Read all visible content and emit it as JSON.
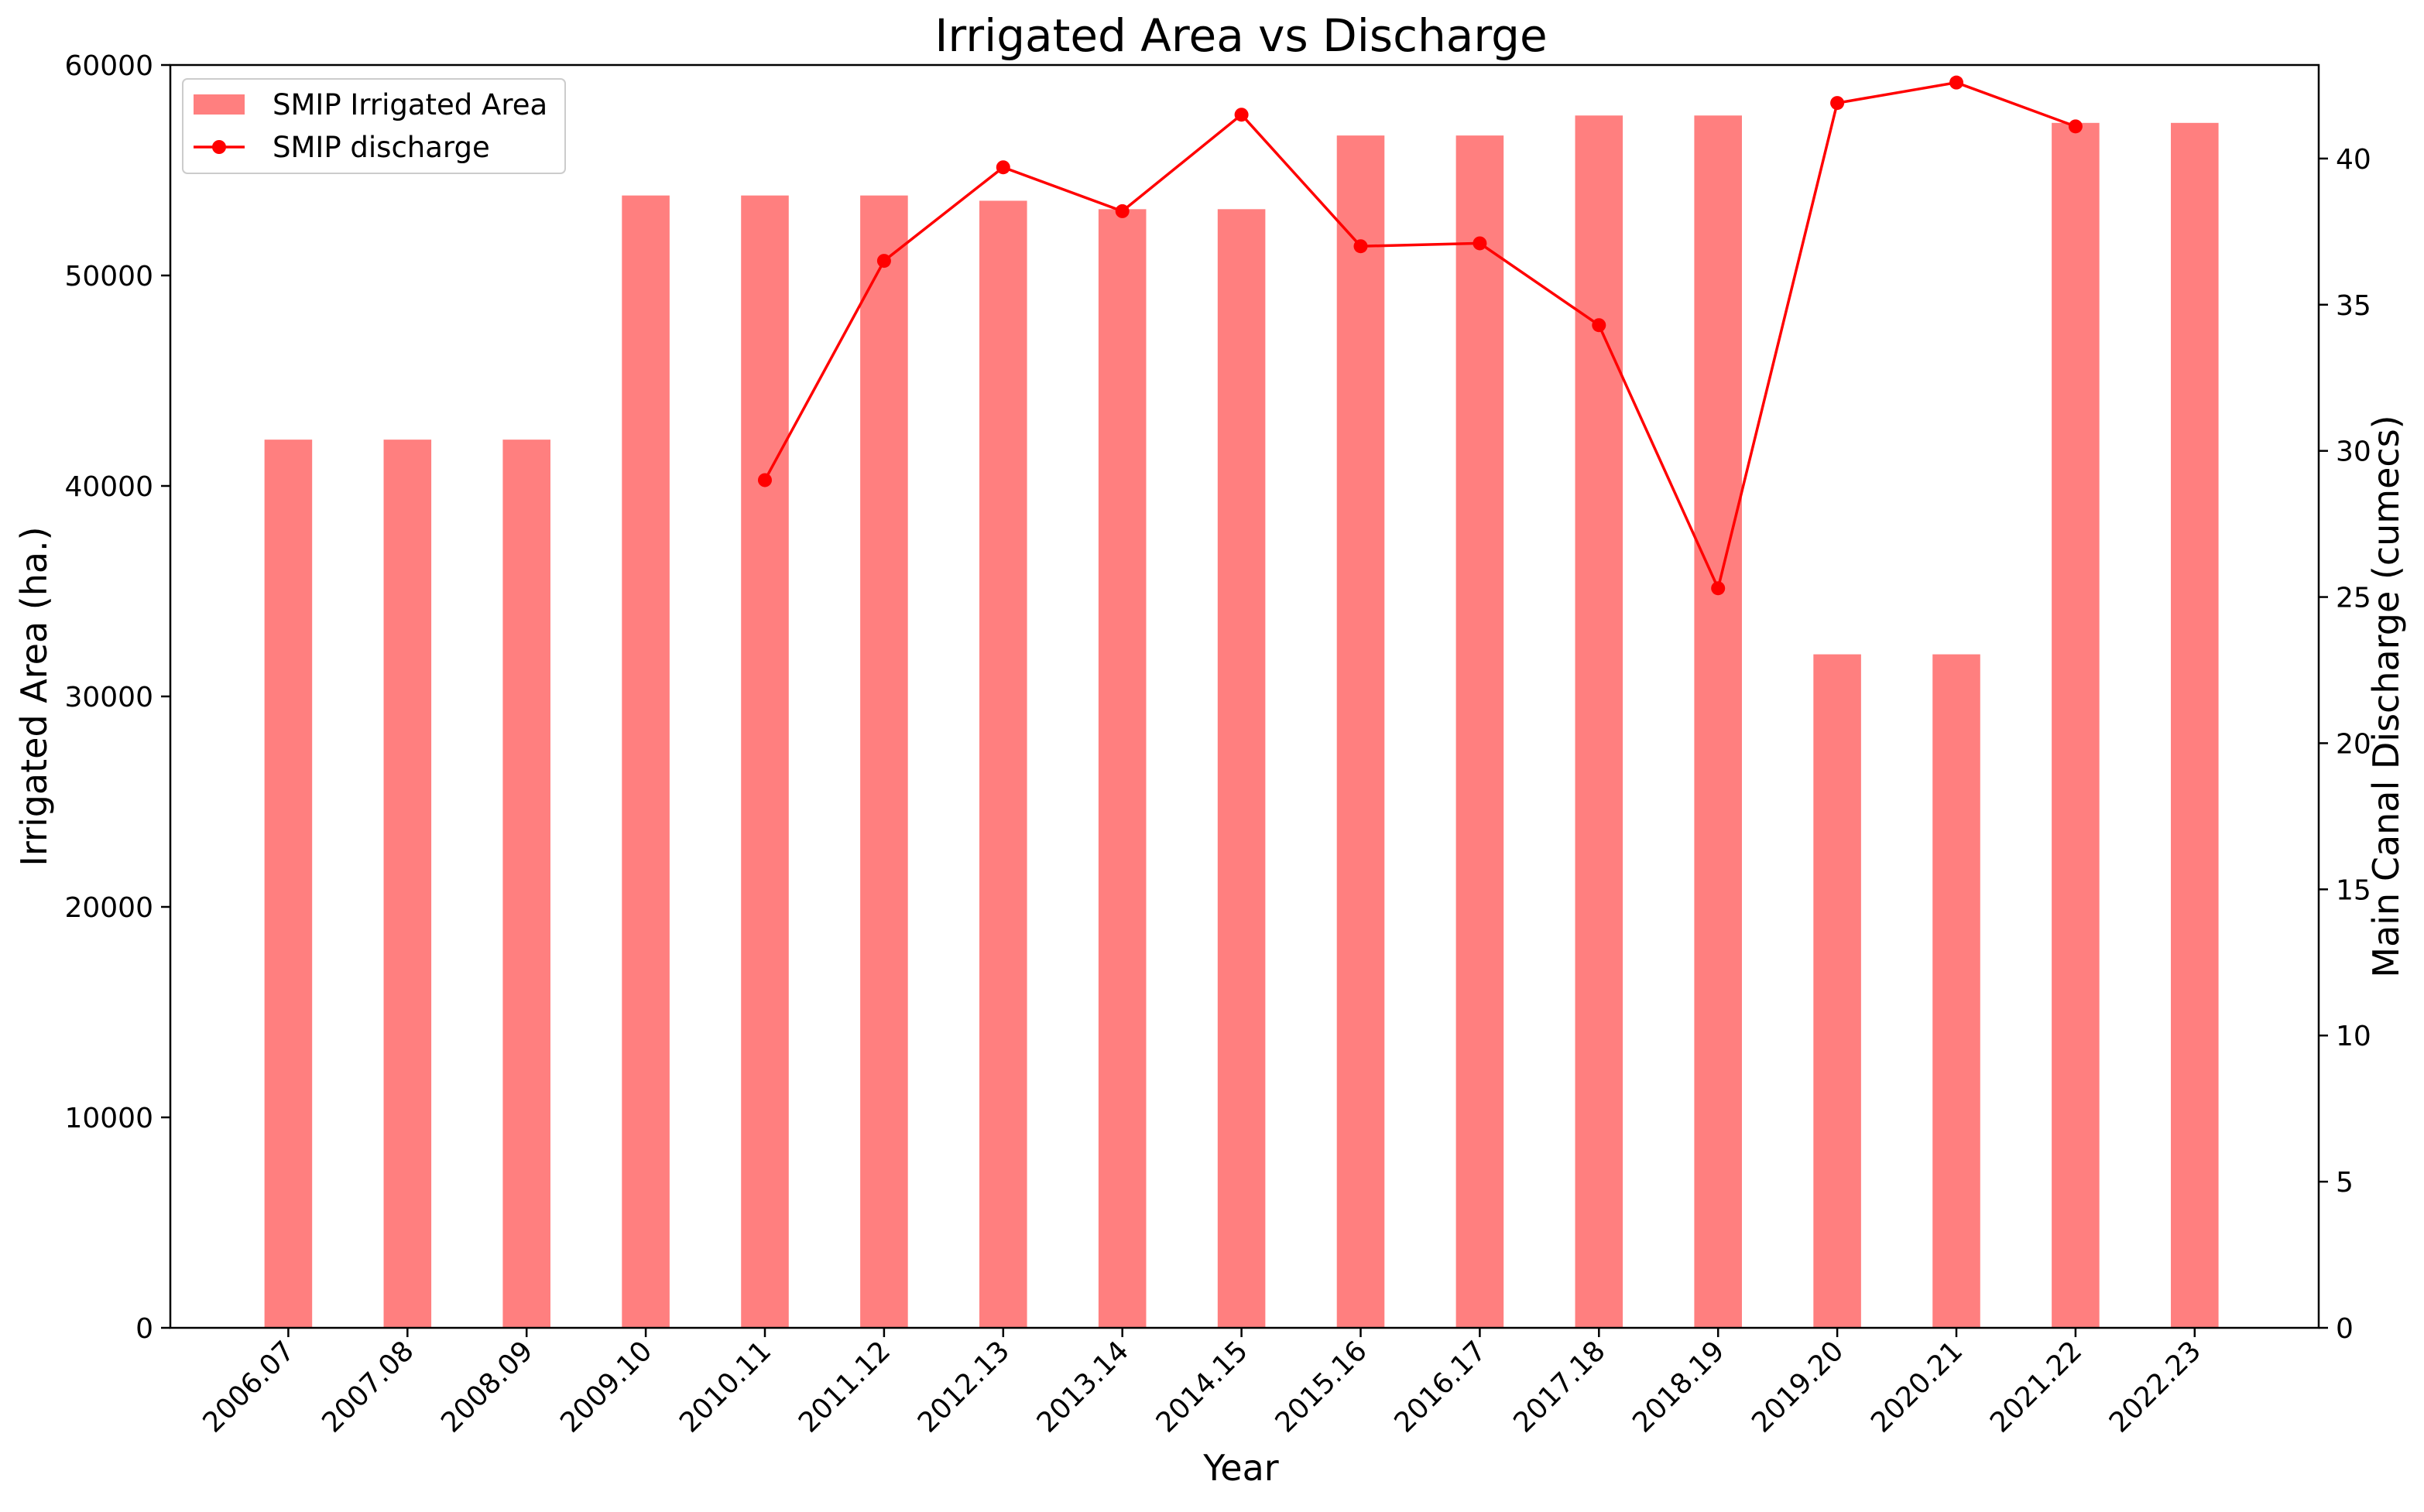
{
  "chart_data": {
    "type": "bar",
    "title": "Irrigated Area vs Discharge",
    "xlabel": "Year",
    "ylabel": "Irrigated Area (ha.)",
    "y2label": "Main Canal Discharge (cumecs)",
    "categories": [
      "2006.07",
      "2007.08",
      "2008.09",
      "2009.10",
      "2010.11",
      "2011.12",
      "2012.13",
      "2013.14",
      "2014.15",
      "2015.16",
      "2016.17",
      "2017.18",
      "2018.19",
      "2019.20",
      "2020.21",
      "2021.22",
      "2022.23"
    ],
    "ylim": [
      0,
      60000
    ],
    "yticks": [
      0,
      10000,
      20000,
      30000,
      40000,
      50000,
      60000
    ],
    "y2lim": [
      0,
      43.2
    ],
    "y2ticks": [
      0,
      5,
      10,
      15,
      20,
      25,
      30,
      35,
      40
    ],
    "grid": false,
    "legend_position": "top-left",
    "series": [
      {
        "name": "SMIP Irrigated Area",
        "type": "bar",
        "axis": "left",
        "color": "#ff7f7f",
        "values": [
          42200,
          42200,
          42200,
          53800,
          53800,
          53800,
          53550,
          53150,
          53150,
          56650,
          56650,
          57600,
          57600,
          32000,
          32000,
          57250,
          57250
        ]
      },
      {
        "name": "SMIP discharge",
        "type": "line",
        "axis": "right",
        "color": "#ff0000",
        "marker": "circle",
        "values": [
          null,
          null,
          null,
          null,
          29.0,
          36.5,
          39.7,
          38.2,
          41.5,
          37.0,
          37.1,
          34.3,
          25.3,
          41.9,
          42.6,
          41.1,
          null
        ]
      }
    ]
  }
}
